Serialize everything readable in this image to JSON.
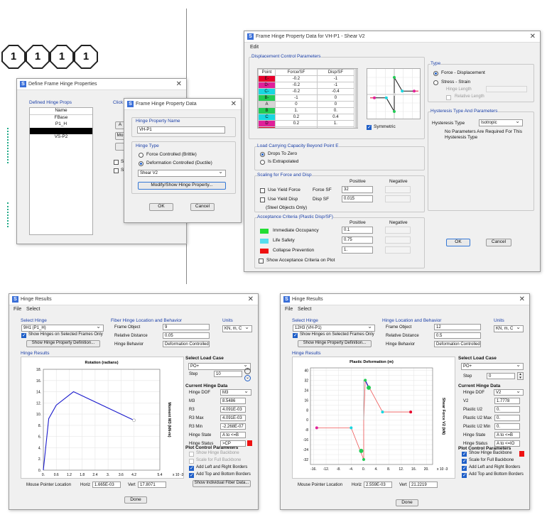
{
  "model": {
    "nodes": [
      "1",
      "1",
      "1",
      "1"
    ],
    "lines": [
      "1"
    ]
  },
  "define": {
    "title": "Define Frame Hinge Properties",
    "group": "Defined Hinge Props",
    "col_name": "Name",
    "items": [
      "FBase",
      "P1_H",
      "",
      "VS-P2"
    ],
    "click_label": "Click",
    "btn_add": "A",
    "btn_modify": "Mo",
    "chk1": "Sh",
    "chk2": "Sh"
  },
  "fhpd": {
    "title": "Frame Hinge Property Data",
    "name_group": "Hinge Property Name",
    "name": "VH-P1",
    "type_group": "Hinge Type",
    "opt_force": "Force Controlled  (Brittle)",
    "opt_def": "Deformation Controlled  (Ductile)",
    "type_select": "Shear V2",
    "modify": "Modify/Show Hinge Property...",
    "ok": "OK",
    "cancel": "Cancel"
  },
  "hpd": {
    "title": "Frame Hinge Property Data for VH-P1 - Shear V2",
    "menu_edit": "Edit",
    "disp_group": "Displacement Control Parameters",
    "table_headers": [
      "Point",
      "Force/SF",
      "Disp/SF"
    ],
    "table_rows": [
      [
        "E-",
        "-0.2",
        "-1"
      ],
      [
        "D-",
        "-0.2",
        "-1"
      ],
      [
        "C-",
        "-0.2",
        "-0.4"
      ],
      [
        "B-",
        "-1",
        "0"
      ],
      [
        "A",
        "0",
        "0"
      ],
      [
        "B",
        "1.",
        "0."
      ],
      [
        "C",
        "0.2",
        "0.4"
      ],
      [
        "D",
        "0.2",
        "1."
      ],
      [
        "E",
        "0.2",
        "1."
      ]
    ],
    "point_colors": [
      "#e8002a",
      "#e0209a",
      "#19d7e0",
      "#22cc55",
      "#d4d4d4",
      "#22cc55",
      "#19d7e0",
      "#e0209a",
      "#e8002a"
    ],
    "symmetric": "Symmetric",
    "beyond_group": "Load Carrying Capacity Beyond Point E",
    "opt_drops": "Drops To Zero",
    "opt_extrap": "Is Extrapolated",
    "scaling_group": "Scaling for Force and Disp",
    "col_pos": "Positive",
    "col_neg": "Negative",
    "use_yield_force": "Use Yield Force",
    "force_sf": "Force SF",
    "force_sf_val": "32",
    "use_yield_disp": "Use Yield Disp",
    "disp_sf": "Disp SF",
    "disp_sf_val": "0.015",
    "steel_note": "(Steel Objects Only)",
    "accept_group": "Acceptance Criteria (Plastic Disp/SF)",
    "acc_pos": "Positive",
    "acc_neg": "Negative",
    "io": "Immediate Occupancy",
    "io_val": "0.1",
    "ls": "Life Safety",
    "ls_val": "0.75",
    "cp": "Collapse Prevention",
    "cp_val": "1.",
    "acc_colors": [
      "#22dd33",
      "#55ddee",
      "#ee1111"
    ],
    "show_acc": "Show Acceptance Criteria on Plot",
    "type_group": "Type",
    "opt_fd": "Force - Displacement",
    "opt_ss": "Stress - Strain",
    "hinge_length": "Hinge Length",
    "relative_length": "Relative Length",
    "hyst_group": "Hysteresis Type And Parameters",
    "hyst_label": "Hysteresis Type",
    "hyst_val": "Isotropic",
    "hyst_note1": "No Parameters Are Required For This",
    "hyst_note2": "Hysteresis Type",
    "ok": "OK",
    "cancel": "Cancel"
  },
  "hr1": {
    "title": "Hinge Results",
    "menu_file": "File",
    "menu_select": "Select",
    "select_hinge": "Select Hinge",
    "hinge": "9H1 (P1_H)",
    "show_sel": "Show Hinges on Selected Frames Only",
    "show_def": "Show Hinge Property Definition...",
    "fiber_group": "Fiber Hinge Location and Behavior",
    "frame_object": "Frame Object",
    "frame_val": "9",
    "rel_dist": "Relative Distance",
    "rel_val": "0.05",
    "behavior": "Hinge Behavior",
    "behavior_val": "Deformation Controlled",
    "units": "Units",
    "units_val": "KN, m, C",
    "results": "Hinge Results",
    "load_case_group": "Select Load Case",
    "load_case": "PO+",
    "step": "Step",
    "step_val": "10",
    "current": "Current Hinge Data",
    "hinge_dof": "Hinge DOF",
    "dof_val": "M3",
    "rows": [
      [
        "M3",
        "8.5486"
      ],
      [
        "R3",
        "4.091E-03"
      ],
      [
        "R3 Max",
        "4.091E-03"
      ],
      [
        "R3 Min",
        "-2.268E-07"
      ],
      [
        "Hinge State",
        "A to <=B"
      ],
      [
        "Hinge Status",
        ">CP"
      ]
    ],
    "plot_group": "Plot Control Parameters",
    "show_backbone": "Show Hinge Backbone",
    "scale_full": "Scale for Full Backbone",
    "add_lr": "Add Left and Right Borders",
    "add_tb": "Add Top and Bottom Borders",
    "show_fiber": "Show Individual Fiber Data...",
    "mouse": "Mouse Pointer Location",
    "horiz": "Horiz",
    "horiz_val": "1.665E-03",
    "vert": "Vert",
    "vert_val": "17.8071",
    "done": "Done"
  },
  "hr2": {
    "title": "Hinge Results",
    "menu_file": "File",
    "menu_select": "Select",
    "select_hinge": "Select Hinge",
    "hinge": "12H3 (VH-P1)",
    "show_sel": "Show Hinges on Selected Frames Only",
    "show_def": "Show Hinge Property Definition...",
    "loc_group": "Hinge Location and Behavior",
    "frame_object": "Frame Object",
    "frame_val": "12",
    "rel_dist": "Relative Distance",
    "rel_val": "0.5",
    "behavior": "Hinge Behavior",
    "behavior_val": "Deformation Controlled",
    "units": "Units",
    "units_val": "KN, m, C",
    "results": "Hinge Results",
    "load_case_group": "Select Load Case",
    "load_case": "PO+",
    "step": "Step",
    "step_val": "0",
    "current": "Current Hinge Data",
    "hinge_dof": "Hinge DOF",
    "dof_val": "V2",
    "rows": [
      [
        "V2",
        "1.7778"
      ],
      [
        "Plastic U2",
        "0."
      ],
      [
        "Plastic U2 Max",
        "0."
      ],
      [
        "Plastic U2 Min",
        "0."
      ],
      [
        "Hinge State",
        "A to <=B"
      ],
      [
        "Hinge Status",
        "A to <=IO"
      ]
    ],
    "plot_group": "Plot Control Parameters",
    "show_backbone": "Show Hinge Backbone",
    "scale_full": "Scale for Full Backbone",
    "add_lr": "Add Left and Right Borders",
    "add_tb": "Add Top and Bottom Borders",
    "mouse": "Mouse Pointer Location",
    "horiz": "Horiz",
    "horiz_val": "2.559E-03",
    "vert": "Vert",
    "vert_val": "21.2219",
    "done": "Done"
  },
  "chart_data": [
    {
      "type": "line",
      "title": "Rotation  (radians)",
      "ylabel": "Moment M3 (kN-m)",
      "x_exponent": "x 10 -3",
      "x_ticks": [
        "0.",
        "0.6",
        "1.2",
        "1.8",
        "2.4",
        "3.",
        "3.6",
        "4.2",
        "5.4"
      ],
      "y_ticks": [
        "0.",
        "2.",
        "4.",
        "6.",
        "8.",
        "10.",
        "12.",
        "14.",
        "16.",
        "18."
      ],
      "xlim": [
        0,
        5.4
      ],
      "ylim": [
        0,
        18
      ],
      "series": [
        {
          "x": [
            0,
            0.25,
            0.6,
            1.4,
            4.2
          ],
          "y": [
            0,
            9.2,
            11.6,
            14.0,
            8.9
          ]
        }
      ]
    },
    {
      "type": "line",
      "title": "Plastic Deformation  (m)",
      "ylabel": "Shear Force V2 (kN)",
      "x_exponent": "x 10 -3",
      "x_ticks": [
        "-16.",
        "-12.",
        "-8.",
        "-4.",
        "0.",
        "4.",
        "8.",
        "12.",
        "16.",
        "20."
      ],
      "y_ticks": [
        "-32",
        "-28",
        "-24",
        "-20",
        "-16",
        "-12",
        "-8",
        "-4",
        "0",
        "4",
        "8",
        "12",
        "16",
        "20",
        "24",
        "28",
        "32",
        "36",
        "40"
      ],
      "xlim": [
        -17,
        22
      ],
      "ylim": [
        -36,
        42
      ],
      "series": [
        {
          "x": [
            -15,
            -4,
            0,
            0,
            0.5,
            6,
            15
          ],
          "y": [
            -6.4,
            -6.4,
            -32,
            0,
            32,
            6.4,
            6.4
          ]
        },
        {
          "x": [
            0,
            0
          ],
          "y": [
            0,
            32
          ]
        }
      ],
      "points": [
        {
          "x": -15,
          "y": -6.4,
          "color": "#e0209a"
        },
        {
          "x": -4,
          "y": -6.4,
          "color": "#19d7e0"
        },
        {
          "x": -0.8,
          "y": -25,
          "color": "#22cc55"
        },
        {
          "x": 0,
          "y": -32,
          "color": "#22cc55"
        },
        {
          "x": 0.5,
          "y": 32,
          "color": "#22cc55"
        },
        {
          "x": 1.6,
          "y": 26,
          "color": "#22cc55"
        },
        {
          "x": 6,
          "y": 6.4,
          "color": "#19d7e0"
        },
        {
          "x": 15,
          "y": 6.4,
          "color": "#e8002a"
        }
      ]
    }
  ]
}
